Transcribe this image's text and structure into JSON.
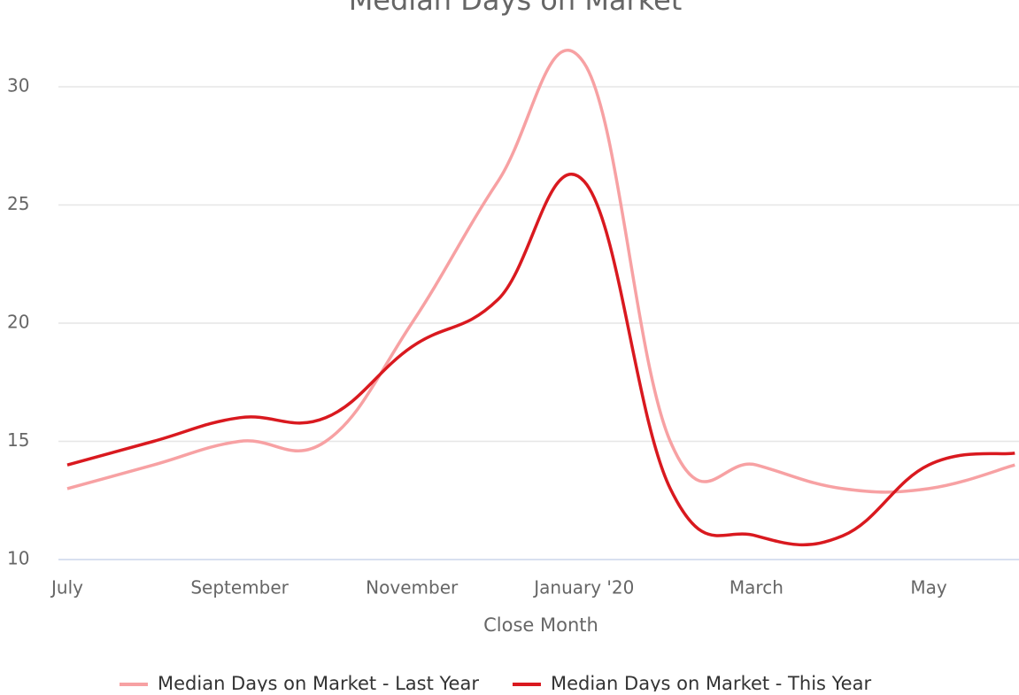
{
  "chart_data": {
    "type": "line",
    "title": "Median Days on Market",
    "x_label": "Close Month",
    "categories": [
      "July",
      null,
      "September",
      null,
      "November",
      null,
      "January '20",
      null,
      "March",
      null,
      "May",
      null
    ],
    "series": [
      {
        "name": "Median Days on Market - Last Year",
        "color": "#f7a1a3",
        "values": [
          13,
          14,
          15,
          15,
          20,
          26,
          31,
          15,
          14,
          13,
          13,
          14
        ]
      },
      {
        "name": "Median Days on Market - This Year",
        "color": "#d9191f",
        "values": [
          14,
          15,
          16,
          16,
          19,
          21,
          26,
          13,
          11,
          11,
          14,
          14.5
        ]
      }
    ],
    "ylim": [
      10,
      32
    ],
    "yticks": [
      10,
      15,
      20,
      25,
      30
    ],
    "grid": true,
    "legend": "bottom"
  }
}
